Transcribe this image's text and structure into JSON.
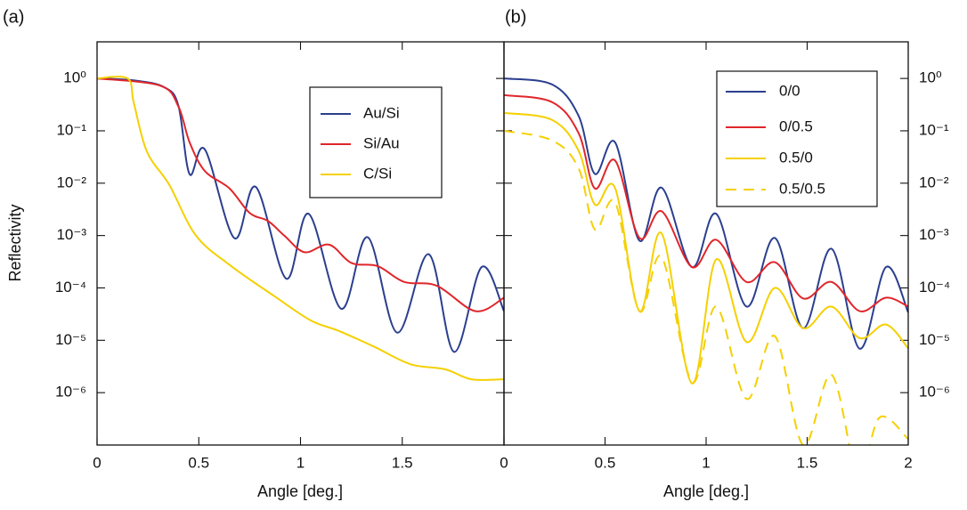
{
  "chart_data": [
    {
      "type": "line",
      "panel_label": "(a)",
      "ylabel": "Reflectivity",
      "xlabel": "Angle [deg.]",
      "log_y": true,
      "xlim": [
        0,
        2
      ],
      "ylim": [
        1e-07,
        5
      ],
      "xticks": [
        0,
        0.5,
        1,
        1.5
      ],
      "yticks": [
        {
          "value": 1,
          "label": "10⁰"
        },
        {
          "value": 0.1,
          "label": "10⁻¹"
        },
        {
          "value": 0.01,
          "label": "10⁻²"
        },
        {
          "value": 0.001,
          "label": "10⁻³"
        },
        {
          "value": 0.0001,
          "label": "10⁻⁴"
        },
        {
          "value": 1e-05,
          "label": "10⁻⁵"
        },
        {
          "value": 1e-06,
          "label": "10⁻⁶"
        }
      ],
      "series": [
        {
          "name": "Au/Si",
          "color": "#2b3f8f",
          "x": [
            0,
            0.18,
            0.33,
            0.4,
            0.455,
            0.53,
            0.675,
            0.78,
            0.93,
            1.04,
            1.2,
            1.33,
            1.475,
            1.63,
            1.755,
            1.89,
            2
          ],
          "values": [
            1.0,
            0.92,
            0.68,
            0.3,
            0.0148,
            0.044,
            0.00089,
            0.0085,
            0.00015,
            0.0026,
            4e-05,
            0.00093,
            1.4e-05,
            0.00044,
            6e-06,
            0.00025,
            3.6e-05
          ]
        },
        {
          "name": "Si/Au",
          "color": "#e0262b",
          "x": [
            0,
            0.31,
            0.4,
            0.455,
            0.53,
            0.65,
            0.75,
            0.84,
            0.92,
            1.02,
            1.14,
            1.25,
            1.38,
            1.51,
            1.67,
            1.86,
            2
          ],
          "values": [
            1.0,
            0.73,
            0.29,
            0.06,
            0.017,
            0.008,
            0.0027,
            0.0019,
            0.001,
            0.00048,
            0.00067,
            0.0003,
            0.00026,
            0.00013,
            0.00011,
            3.6e-05,
            6.5e-05
          ]
        },
        {
          "name": "C/Si",
          "color": "#f5d000",
          "x": [
            0,
            0.15,
            0.18,
            0.245,
            0.355,
            0.486,
            0.66,
            0.88,
            1.05,
            1.19,
            1.36,
            1.54,
            1.71,
            1.84,
            2
          ],
          "values": [
            1.0,
            1.0,
            0.35,
            0.04,
            0.0093,
            0.001,
            0.00026,
            6.6e-05,
            2.4e-05,
            1.5e-05,
            7.6e-06,
            3.5e-06,
            2.8e-06,
            1.8e-06,
            1.8e-06
          ]
        }
      ]
    },
    {
      "type": "line",
      "panel_label": "(b)",
      "xlabel": "Angle [deg.]",
      "log_y": true,
      "xlim": [
        0,
        2
      ],
      "ylim": [
        1e-07,
        5
      ],
      "xticks": [
        0,
        0.5,
        1,
        1.5,
        2
      ],
      "yticks": [
        {
          "value": 1,
          "label": "10⁰"
        },
        {
          "value": 0.1,
          "label": "10⁻¹"
        },
        {
          "value": 0.01,
          "label": "10⁻²"
        },
        {
          "value": 0.001,
          "label": "10⁻³"
        },
        {
          "value": 0.0001,
          "label": "10⁻⁴"
        },
        {
          "value": 1e-05,
          "label": "10⁻⁵"
        },
        {
          "value": 1e-06,
          "label": "10⁻⁶"
        }
      ],
      "series": [
        {
          "name": "0/0",
          "color": "#2b3f8f",
          "x": [
            0,
            0.24,
            0.37,
            0.45,
            0.55,
            0.67,
            0.78,
            0.93,
            1.05,
            1.2,
            1.34,
            1.48,
            1.62,
            1.76,
            1.89,
            2
          ],
          "values": [
            1.0,
            0.76,
            0.19,
            0.015,
            0.06,
            0.0008,
            0.0082,
            0.00025,
            0.0026,
            4.4e-05,
            0.0009,
            1.7e-05,
            0.00056,
            6.9e-06,
            0.00025,
            3.4e-05
          ]
        },
        {
          "name": "0/0.5",
          "color": "#e0262b",
          "x": [
            0,
            0.24,
            0.37,
            0.45,
            0.55,
            0.67,
            0.78,
            0.93,
            1.05,
            1.2,
            1.34,
            1.48,
            1.62,
            1.76,
            1.89,
            2
          ],
          "values": [
            0.48,
            0.35,
            0.089,
            0.0079,
            0.027,
            0.0009,
            0.0029,
            0.00025,
            0.00083,
            0.00013,
            0.00031,
            6.3e-05,
            0.00013,
            3.6e-05,
            6.5e-05,
            4.4e-05
          ]
        },
        {
          "name": "0.5/0",
          "color": "#f5d000",
          "x": [
            0,
            0.24,
            0.37,
            0.45,
            0.55,
            0.67,
            0.78,
            0.93,
            1.05,
            1.2,
            1.34,
            1.48,
            1.62,
            1.76,
            1.89,
            2
          ],
          "values": [
            0.22,
            0.16,
            0.041,
            0.0039,
            0.008,
            3.6e-05,
            0.0011,
            1.5e-06,
            0.00035,
            9.3e-06,
            0.0001,
            1.7e-05,
            4.4e-05,
            1.1e-05,
            2e-05,
            7e-06
          ]
        },
        {
          "name": "0.5/0.5",
          "color": "#f5d000",
          "dashed": true,
          "x": [
            0,
            0.24,
            0.37,
            0.45,
            0.55,
            0.67,
            0.78,
            0.93,
            1.05,
            1.2,
            1.34,
            1.48,
            1.62,
            1.75,
            1.86,
            2
          ],
          "values": [
            0.1,
            0.065,
            0.019,
            0.0013,
            0.0043,
            3.6e-05,
            0.00039,
            1.6e-06,
            4.4e-05,
            7.6e-07,
            1.2e-05,
            1e-07,
            2.2e-06,
            3e-08,
            3.4e-07,
            1.3e-07
          ]
        }
      ]
    }
  ]
}
